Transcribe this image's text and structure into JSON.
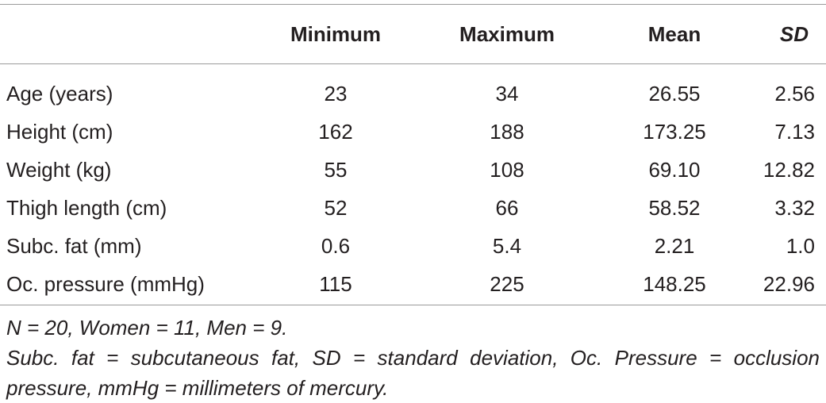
{
  "table": {
    "headers": [
      "",
      "Minimum",
      "Maximum",
      "Mean",
      "SD"
    ],
    "rows": [
      {
        "label": "Age (years)",
        "min": "23",
        "max": "34",
        "mean": "26.55",
        "sd": "2.56"
      },
      {
        "label": "Height (cm)",
        "min": "162",
        "max": "188",
        "mean": "173.25",
        "sd": "7.13"
      },
      {
        "label": "Weight (kg)",
        "min": "55",
        "max": "108",
        "mean": "69.10",
        "sd": "12.82"
      },
      {
        "label": "Thigh length (cm)",
        "min": "52",
        "max": "66",
        "mean": "58.52",
        "sd": "3.32"
      },
      {
        "label": "Subc. fat (mm)",
        "min": "0.6",
        "max": "5.4",
        "mean": "2.21",
        "sd": "1.0"
      },
      {
        "label": "Oc. pressure (mmHg)",
        "min": "115",
        "max": "225",
        "mean": "148.25",
        "sd": "22.96"
      }
    ]
  },
  "footnotes": {
    "line1": "N = 20, Women = 11, Men = 9.",
    "line2": "Subc. fat = subcutaneous fat, SD = standard deviation, Oc. Pressure = occlusion pressure, mmHg = millimeters of mercury."
  }
}
